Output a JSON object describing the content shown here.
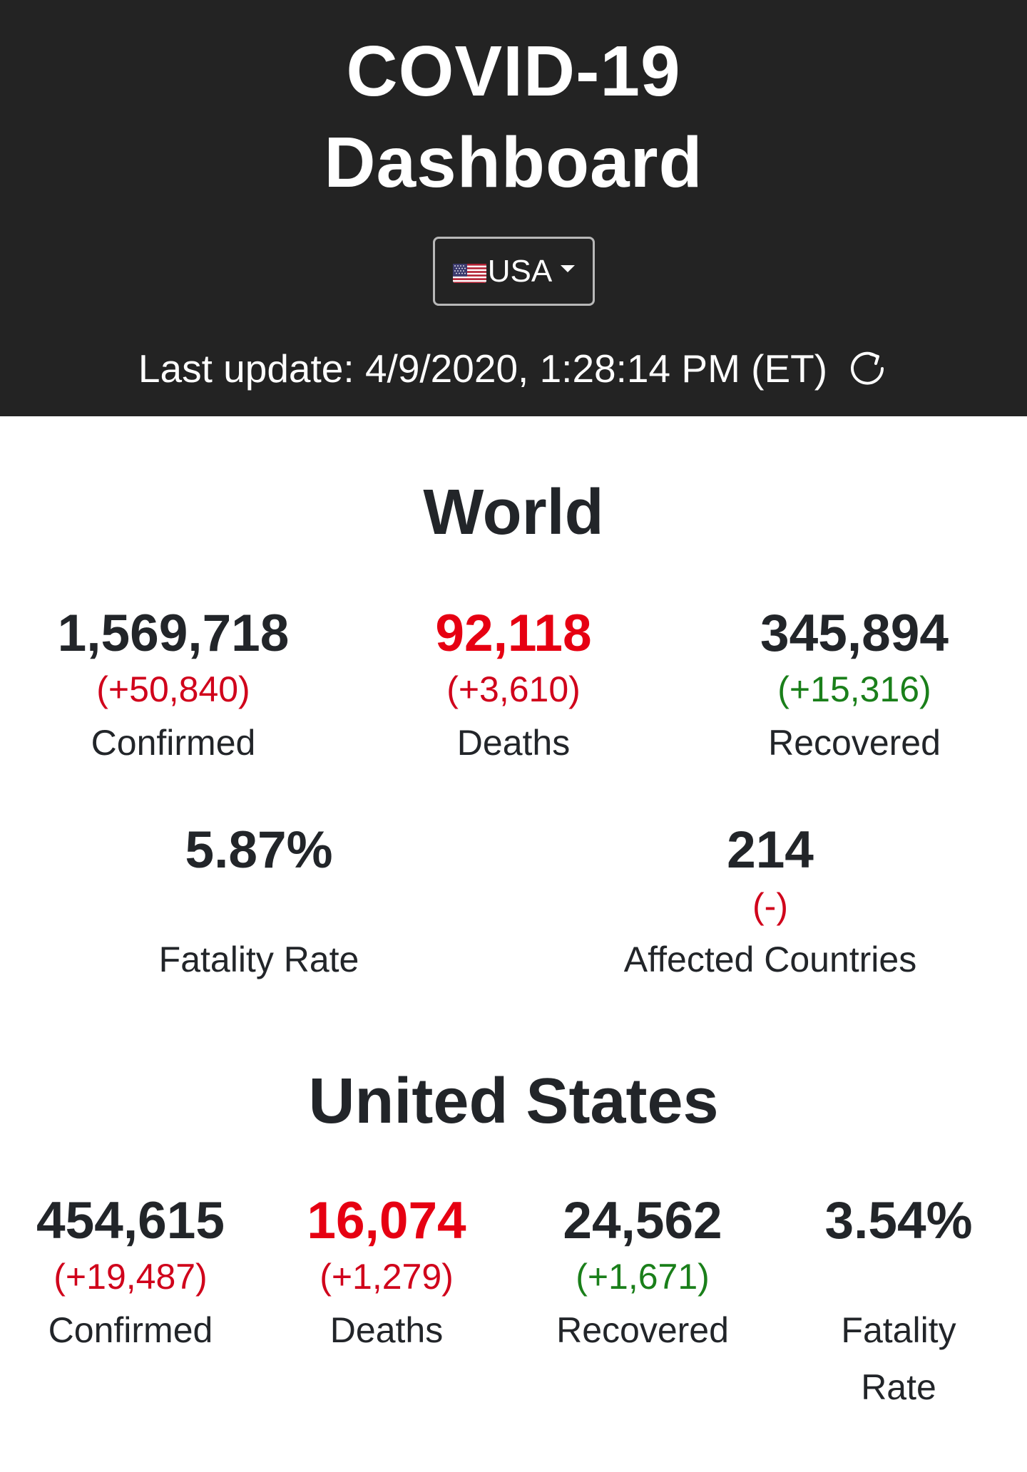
{
  "header": {
    "title_line1": "COVID-19",
    "title_line2": "Dashboard",
    "country_select": {
      "flag_icon": "us-flag-icon",
      "value": "USA"
    },
    "last_update": "Last update: 4/9/2020, 1:28:14 PM (ET)"
  },
  "world": {
    "title": "World",
    "confirmed": {
      "value": "1,569,718",
      "delta": "(+50,840)",
      "label": "Confirmed"
    },
    "deaths": {
      "value": "92,118",
      "delta": "(+3,610)",
      "label": "Deaths"
    },
    "recovered": {
      "value": "345,894",
      "delta": "(+15,316)",
      "label": "Recovered"
    },
    "fatality": {
      "value": "5.87%",
      "label": "Fatality Rate"
    },
    "countries": {
      "value": "214",
      "delta": "(-)",
      "label": "Affected Countries"
    }
  },
  "us": {
    "title": "United States",
    "confirmed": {
      "value": "454,615",
      "delta": "(+19,487)",
      "label": "Confirmed"
    },
    "deaths": {
      "value": "16,074",
      "delta": "(+1,279)",
      "label": "Deaths"
    },
    "recovered": {
      "value": "24,562",
      "delta": "(+1,671)",
      "label": "Recovered"
    },
    "fatality": {
      "value": "3.54%",
      "label_line1": "Fatality",
      "label_line2": "Rate"
    }
  },
  "colors": {
    "header_bg": "#232323",
    "deaths_red": "#e60012",
    "delta_red": "#d0021b",
    "delta_green": "#1a7f1a"
  }
}
